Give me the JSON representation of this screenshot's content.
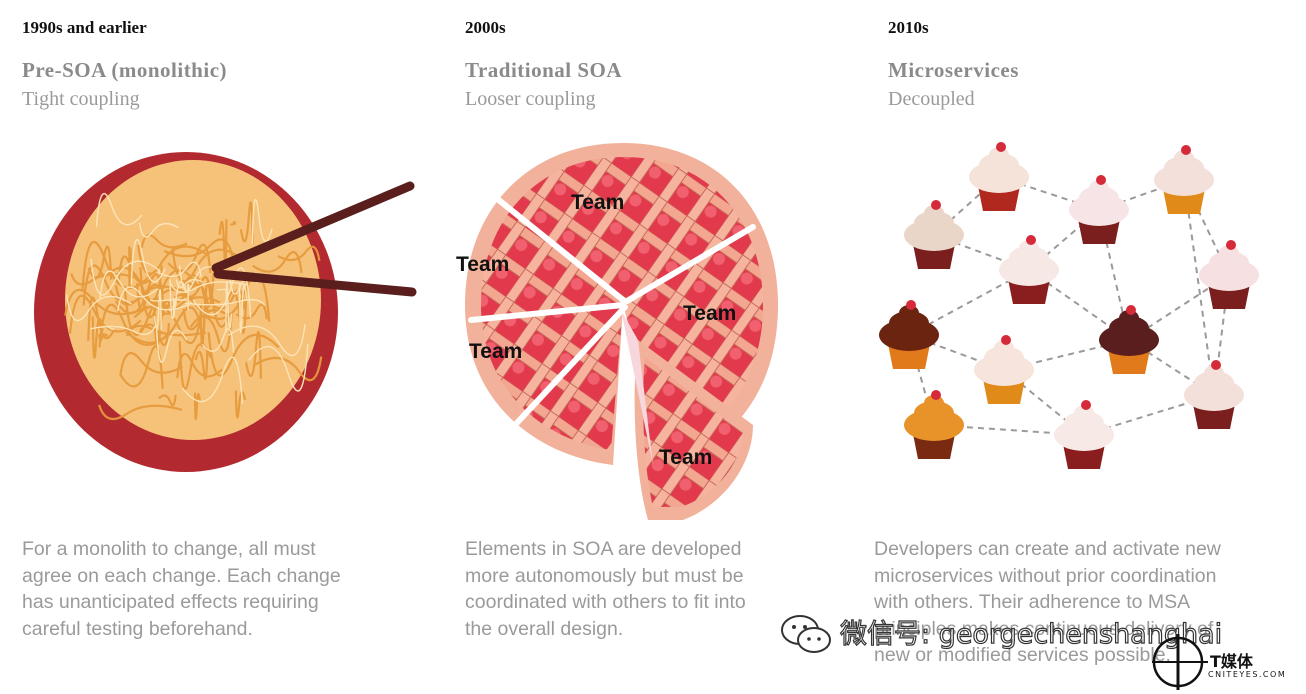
{
  "columns": [
    {
      "era": "1990s and earlier",
      "heading": "Pre-SOA (monolithic)",
      "subheading": "Tight coupling",
      "description": "For a monolith to change, all must\nagree on each change. Each change\nhas unanticipated effects requiring\ncareful testing beforehand."
    },
    {
      "era": "2000s",
      "heading": "Traditional SOA",
      "subheading": "Looser coupling",
      "description": "Elements in SOA are developed\nmore autonomously but must be\ncoordinated with others to fit into\nthe overall design.",
      "pie_labels": [
        "Team",
        "Team",
        "Team",
        "Team",
        "Team"
      ]
    },
    {
      "era": "2010s",
      "heading": "Microservices",
      "subheading": "Decoupled",
      "description": "Developers can create and activate new\nmicroservices without prior coordination\nwith others. Their adherence to MSA\nprinciples makes continuous delivery of\nnew or modified services possible."
    }
  ],
  "watermark": {
    "text": "微信号: georgechenshanghai",
    "logo_text": "T媒体",
    "logo_sub": "CNITEYES.COM"
  },
  "icons": [
    "noodle-bowl-icon",
    "pie-icon",
    "cupcake-icon",
    "wechat-icon"
  ]
}
